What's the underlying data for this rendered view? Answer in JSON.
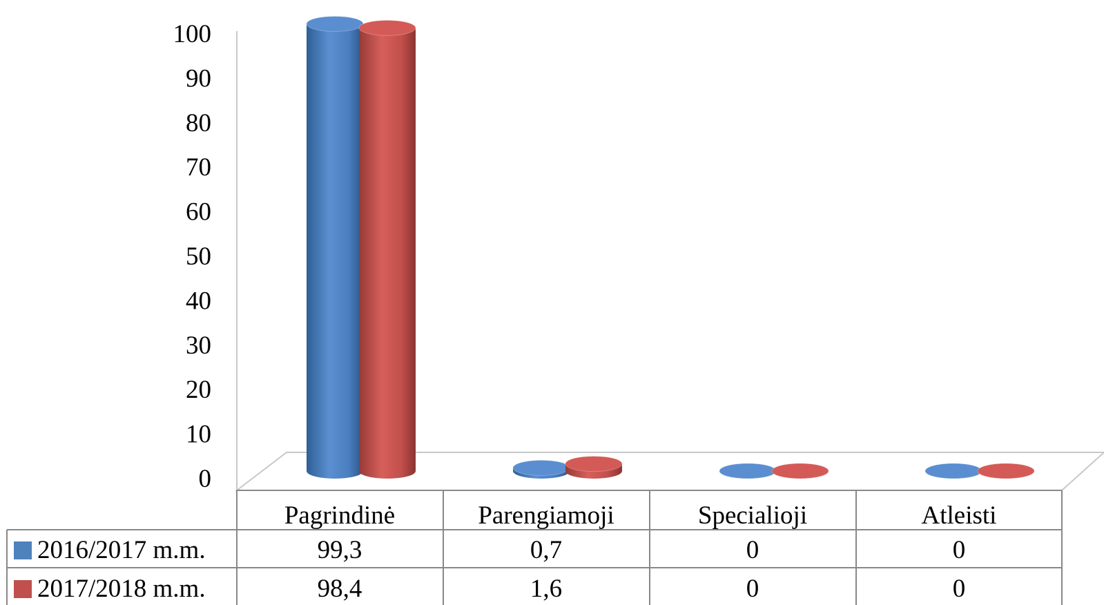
{
  "chart_data": {
    "type": "bar",
    "style": "3d-cylinder-with-data-table",
    "categories": [
      "Pagrindinė",
      "Parengiamoji",
      "Specialioji",
      "Atleisti"
    ],
    "series": [
      {
        "name": "2016/2017 m.m.",
        "values": [
          99.3,
          0.7,
          0,
          0
        ],
        "labels": [
          "99,3",
          "0,7",
          "0",
          "0"
        ],
        "color": "#4f81bd"
      },
      {
        "name": "2017/2018 m.m.",
        "values": [
          98.4,
          1.6,
          0,
          0
        ],
        "labels": [
          "98,4",
          "1,6",
          "0",
          "0"
        ],
        "color": "#c0504d"
      }
    ],
    "y_ticks": [
      "0",
      "10",
      "20",
      "30",
      "40",
      "50",
      "60",
      "70",
      "80",
      "90",
      "100"
    ],
    "ylim": [
      0,
      100
    ],
    "grid": false,
    "legend": "data-table-left",
    "title": "",
    "xlabel": "",
    "ylabel": ""
  }
}
